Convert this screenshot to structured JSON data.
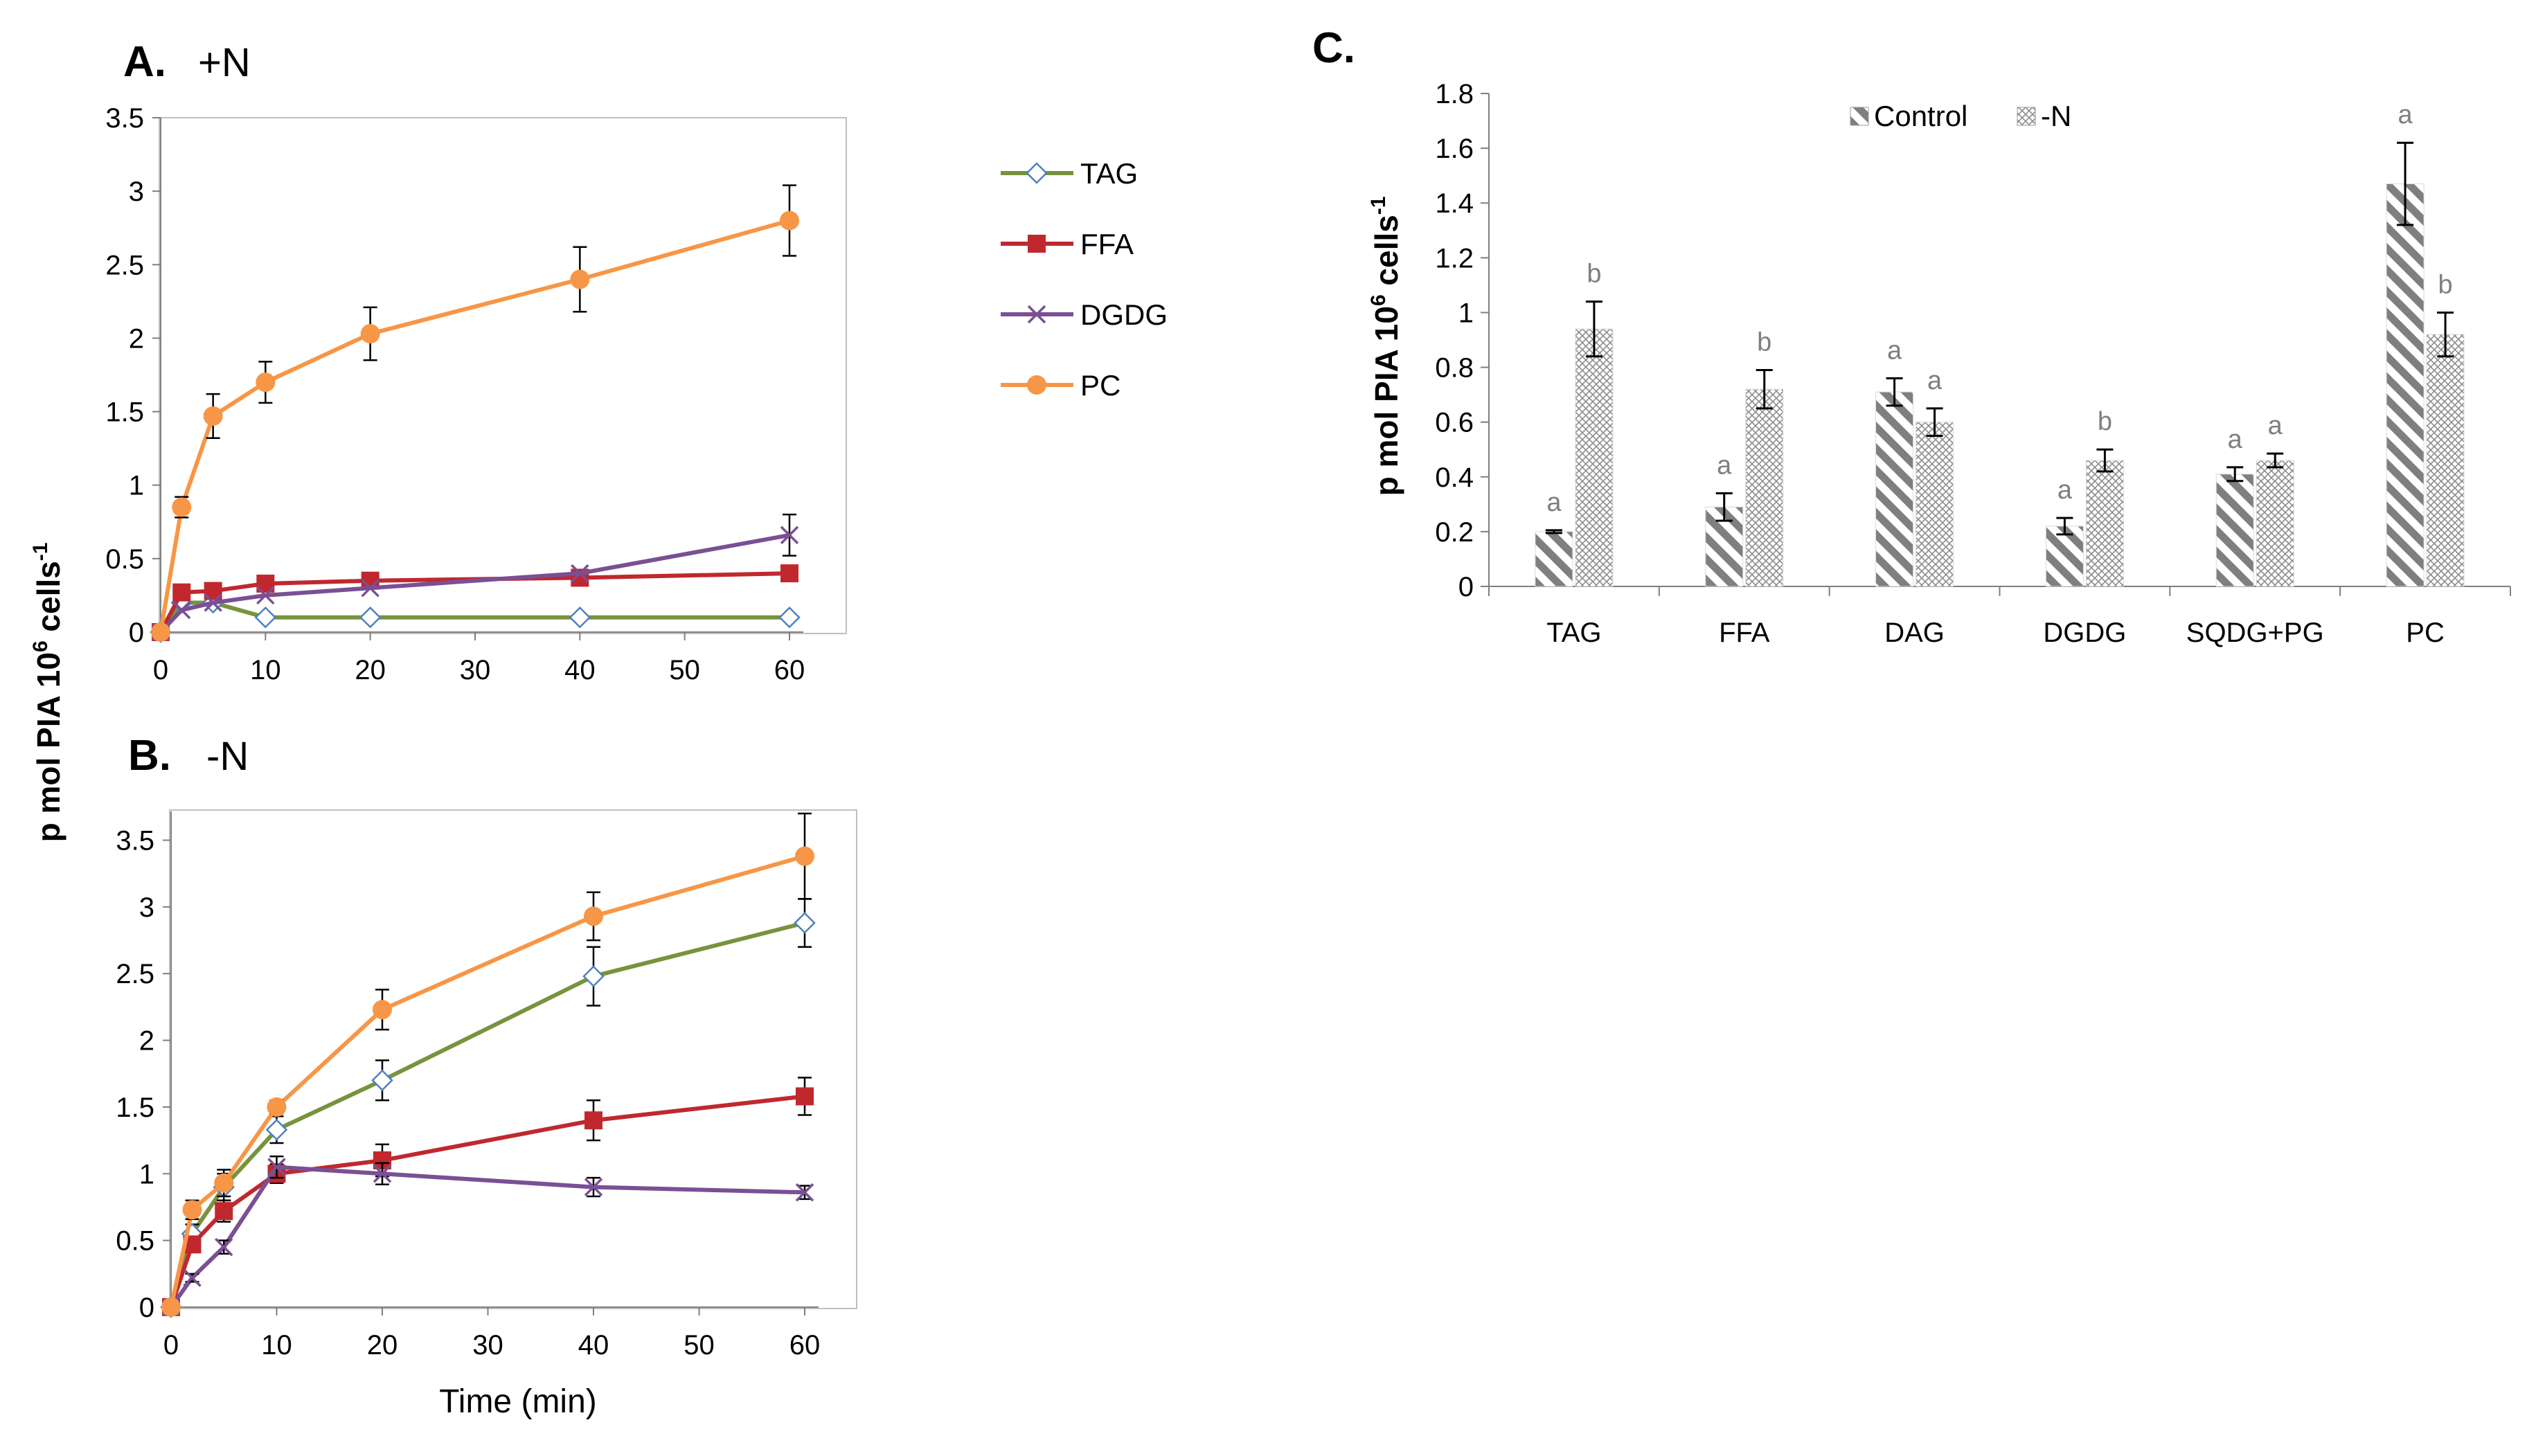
{
  "chart_data": [
    {
      "id": "A",
      "type": "line",
      "title": "A.",
      "condition": "+N",
      "xlabel": "",
      "ylabel": "p mol PIA 10^6 cells^-1",
      "x": [
        0,
        2,
        5,
        10,
        20,
        40,
        60
      ],
      "xlim": [
        0,
        60
      ],
      "xticks": [
        "0",
        "10",
        "20",
        "30",
        "40",
        "50",
        "60"
      ],
      "ylim": [
        0,
        3.5
      ],
      "yticks": [
        "0",
        "0.5",
        "1",
        "1.5",
        "2",
        "2.5",
        "3",
        "3.5"
      ],
      "series": [
        {
          "name": "TAG",
          "color": "#77933c",
          "marker": "diamond",
          "values": [
            0,
            0.2,
            0.2,
            0.1,
            0.1,
            0.1,
            0.1
          ],
          "errors": [
            0,
            0,
            0,
            0,
            0,
            0,
            0
          ]
        },
        {
          "name": "FFA",
          "color": "#c0282e",
          "marker": "square",
          "values": [
            0,
            0.27,
            0.28,
            0.33,
            0.35,
            0.37,
            0.4
          ],
          "errors": [
            0,
            0,
            0,
            0,
            0,
            0,
            0
          ]
        },
        {
          "name": "DGDG",
          "color": "#7a4f94",
          "marker": "x",
          "values": [
            0,
            0.15,
            0.2,
            0.25,
            0.3,
            0.4,
            0.66
          ],
          "errors": [
            0,
            0,
            0,
            0,
            0,
            0,
            0.14
          ]
        },
        {
          "name": "PC",
          "color": "#f79646",
          "marker": "circle",
          "values": [
            0,
            0.85,
            1.47,
            1.7,
            2.03,
            2.4,
            2.8
          ],
          "errors": [
            0,
            0.07,
            0.15,
            0.14,
            0.18,
            0.22,
            0.24
          ]
        }
      ]
    },
    {
      "id": "B",
      "type": "line",
      "title": "B.",
      "condition": "-N",
      "xlabel": "Time (min)",
      "ylabel": "p mol PIA 10^6 cells^-1",
      "x": [
        0,
        2,
        5,
        10,
        20,
        40,
        60
      ],
      "xlim": [
        0,
        60
      ],
      "xticks": [
        "0",
        "10",
        "20",
        "30",
        "40",
        "50",
        "60"
      ],
      "ylim": [
        0,
        3.7
      ],
      "yticks": [
        "0",
        "0.5",
        "1",
        "1.5",
        "2",
        "2.5",
        "3",
        "3.5"
      ],
      "series": [
        {
          "name": "TAG",
          "color": "#77933c",
          "marker": "diamond",
          "values": [
            0,
            0.55,
            0.9,
            1.33,
            1.7,
            2.48,
            2.88
          ],
          "errors": [
            0,
            0.07,
            0.1,
            0.1,
            0.15,
            0.22,
            0.18
          ]
        },
        {
          "name": "FFA",
          "color": "#c0282e",
          "marker": "square",
          "values": [
            0,
            0.47,
            0.72,
            1.0,
            1.1,
            1.4,
            1.58
          ],
          "errors": [
            0,
            0.05,
            0.08,
            0.07,
            0.12,
            0.15,
            0.14
          ]
        },
        {
          "name": "DGDG",
          "color": "#7a4f94",
          "marker": "x",
          "values": [
            0,
            0.22,
            0.45,
            1.05,
            1.0,
            0.9,
            0.86
          ],
          "errors": [
            0,
            0.03,
            0.05,
            0.08,
            0.08,
            0.07,
            0.05
          ]
        },
        {
          "name": "PC",
          "color": "#f79646",
          "marker": "circle",
          "values": [
            0,
            0.73,
            0.93,
            1.5,
            2.23,
            2.93,
            3.38
          ],
          "errors": [
            0,
            0.07,
            0.1,
            0.05,
            0.15,
            0.18,
            0.32
          ]
        }
      ]
    },
    {
      "id": "C",
      "type": "bar",
      "title": "C.",
      "xlabel": "",
      "ylabel": "p mol PIA 10^6 cells^-1",
      "categories": [
        "TAG",
        "FFA",
        "DAG",
        "DGDG",
        "SQDG+PG",
        "PC"
      ],
      "ylim": [
        0,
        1.8
      ],
      "yticks": [
        "0",
        "0.2",
        "0.4",
        "0.6",
        "0.8",
        "1",
        "1.2",
        "1.4",
        "1.6",
        "1.8"
      ],
      "series": [
        {
          "name": "Control",
          "pattern": "diagonal",
          "values": [
            0.2,
            0.29,
            0.71,
            0.22,
            0.41,
            1.47
          ],
          "errors": [
            0.005,
            0.05,
            0.05,
            0.03,
            0.025,
            0.15
          ],
          "letters": [
            "a",
            "a",
            "a",
            "a",
            "a",
            "a"
          ]
        },
        {
          "name": "-N",
          "pattern": "crosshatch",
          "values": [
            0.94,
            0.72,
            0.6,
            0.46,
            0.46,
            0.92
          ],
          "errors": [
            0.1,
            0.07,
            0.05,
            0.04,
            0.025,
            0.08
          ],
          "letters": [
            "b",
            "b",
            "a",
            "b",
            "a",
            "b"
          ]
        }
      ]
    }
  ],
  "labels": {
    "ylabel_main": "p mol PIA 10",
    "ylabel_sup": "6",
    "ylabel_cells": " cells",
    "ylabel_sup2": "-1"
  }
}
